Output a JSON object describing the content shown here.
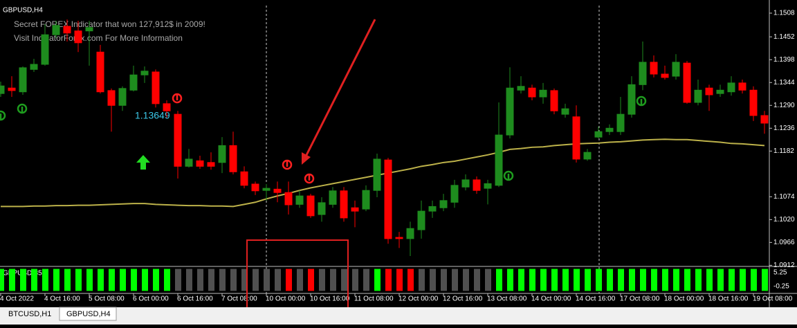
{
  "chart_data": [
    {
      "type": "candlestick",
      "title": "GBPUSD,H4",
      "annotations": [
        "Secret FOREX Indicator that won 127,912$ in 2009!",
        "Visit IndicatorForex.com For More Information",
        "1.13649"
      ],
      "categories": [
        "4 Oct 2022",
        null,
        null,
        null,
        "4 Oct 16:00",
        null,
        null,
        null,
        "5 Oct 08:00",
        null,
        null,
        null,
        "6 Oct 00:00",
        null,
        null,
        null,
        "6 Oct 16:00",
        null,
        null,
        null,
        "7 Oct 08:00",
        null,
        null,
        null,
        "10 Oct 00:00",
        null,
        null,
        null,
        "10 Oct 16:00",
        null,
        null,
        null,
        "11 Oct 08:00",
        null,
        null,
        null,
        "12 Oct 00:00",
        null,
        null,
        null,
        "12 Oct 16:00",
        null,
        null,
        null,
        "13 Oct 08:00",
        null,
        null,
        null,
        "14 Oct 00:00",
        null,
        null,
        null,
        "14 Oct 16:00",
        null,
        null,
        null,
        "17 Oct 08:00",
        null,
        null,
        null,
        "18 Oct 00:00",
        null,
        null,
        null,
        "18 Oct 16:00",
        null,
        null,
        null,
        "19 Oct 08:00",
        null
      ],
      "open": [
        1.1318,
        1.1331,
        1.1322,
        1.1375,
        1.1387,
        1.1457,
        1.1477,
        1.1466,
        1.1466,
        1.1416,
        1.1325,
        1.129,
        1.1326,
        1.1362,
        1.1369,
        1.1294,
        1.1269,
        1.1146,
        1.1159,
        1.1155,
        1.1155,
        1.1195,
        1.1133,
        1.1104,
        1.1089,
        1.1092,
        1.1084,
        1.1056,
        1.1076,
        1.1032,
        1.1056,
        1.1088,
        1.1048,
        1.1045,
        1.1089,
        1.1161,
        1.0978,
        1.0975,
        1.0996,
        1.104,
        1.1048,
        1.1061,
        1.1097,
        1.1114,
        1.1094,
        1.1101,
        1.122,
        1.1326,
        1.1331,
        1.131,
        1.1325,
        1.1269,
        1.1263,
        1.1163,
        1.1215,
        1.1228,
        1.1228,
        1.1269,
        1.1339,
        1.1392,
        1.1364,
        1.1359,
        1.139,
        1.1297,
        1.1331,
        1.1318,
        1.1322,
        1.1343,
        1.1326,
        1.1266
      ],
      "high": [
        1.1346,
        1.1359,
        1.1382,
        1.14,
        1.1482,
        1.149,
        1.1493,
        1.149,
        1.149,
        1.1433,
        1.133,
        1.1335,
        1.1384,
        1.1382,
        1.1375,
        1.1302,
        1.1277,
        1.1187,
        1.1171,
        1.1179,
        1.1215,
        1.1228,
        1.1146,
        1.111,
        1.1104,
        1.111,
        1.111,
        1.1089,
        1.1081,
        1.1073,
        1.1097,
        1.1097,
        1.1065,
        1.1101,
        1.1176,
        1.1166,
        1.0991,
        1.1015,
        1.1065,
        1.1065,
        1.1081,
        1.1114,
        1.1127,
        1.1122,
        1.1114,
        1.1297,
        1.138,
        1.1359,
        1.1339,
        1.1343,
        1.133,
        1.1294,
        1.129,
        1.1187,
        1.124,
        1.1245,
        1.131,
        1.1359,
        1.1441,
        1.1408,
        1.1384,
        1.1411,
        1.1395,
        1.1351,
        1.1339,
        1.1339,
        1.1359,
        1.1351,
        1.1335,
        1.1277
      ],
      "low": [
        1.131,
        1.131,
        1.1315,
        1.1369,
        1.1384,
        1.1449,
        1.1441,
        1.1416,
        1.1384,
        1.1318,
        1.1228,
        1.1277,
        1.1323,
        1.1343,
        1.1285,
        1.1261,
        1.1117,
        1.1143,
        1.114,
        1.1138,
        1.113,
        1.1127,
        1.1094,
        1.1078,
        1.1065,
        1.1061,
        1.1032,
        1.1048,
        1.1024,
        1.1015,
        1.1048,
        1.1015,
        1.1002,
        1.104,
        1.1073,
        1.0963,
        1.0953,
        1.0934,
        1.0975,
        1.1024,
        1.104,
        1.1048,
        1.1089,
        1.1081,
        1.1056,
        1.1097,
        1.1212,
        1.1318,
        1.1302,
        1.1294,
        1.1269,
        1.1261,
        1.1155,
        1.1159,
        1.1212,
        1.122,
        1.122,
        1.1261,
        1.1326,
        1.1356,
        1.1351,
        1.1351,
        1.1294,
        1.129,
        1.1277,
        1.131,
        1.1313,
        1.1318,
        1.1253,
        1.1223
      ],
      "close": [
        1.1336,
        1.1325,
        1.1379,
        1.1387,
        1.1457,
        1.1479,
        1.1461,
        1.1438,
        1.1474,
        1.1322,
        1.129,
        1.133,
        1.1362,
        1.1371,
        1.1294,
        1.1277,
        1.1146,
        1.1163,
        1.1146,
        1.1146,
        1.1195,
        1.1133,
        1.1101,
        1.1088,
        1.1094,
        1.1084,
        1.1055,
        1.1076,
        1.1029,
        1.106,
        1.1088,
        1.1024,
        1.104,
        1.1089,
        1.1163,
        1.0975,
        1.0975,
        1.0999,
        1.104,
        1.1051,
        1.1065,
        1.1101,
        1.1114,
        1.1089,
        1.1105,
        1.122,
        1.1331,
        1.1335,
        1.131,
        1.1326,
        1.1277,
        1.1282,
        1.1163,
        1.1179,
        1.1228,
        1.1236,
        1.1269,
        1.1339,
        1.1392,
        1.1364,
        1.1356,
        1.1392,
        1.1297,
        1.1326,
        1.1315,
        1.1326,
        1.1343,
        1.1326,
        1.1266,
        1.1248
      ],
      "up_color": "#1e8c1e",
      "down_color": "#ff0000",
      "ma": {
        "color": "#bdb24a",
        "values": [
          1.1051,
          1.1051,
          1.1051,
          1.1052,
          1.1052,
          1.1053,
          1.1053,
          1.1054,
          1.1054,
          1.1055,
          1.1056,
          1.1057,
          1.1058,
          1.1058,
          1.1056,
          1.1055,
          1.1054,
          1.1053,
          1.1053,
          1.1052,
          1.1052,
          1.1051,
          1.1056,
          1.1061,
          1.1069,
          1.1076,
          1.1082,
          1.1089,
          1.1095,
          1.11,
          1.1105,
          1.111,
          1.1115,
          1.112,
          1.1125,
          1.113,
          1.1135,
          1.114,
          1.1146,
          1.115,
          1.1155,
          1.1158,
          1.1163,
          1.1168,
          1.1173,
          1.1179,
          1.1186,
          1.1188,
          1.1191,
          1.1192,
          1.1195,
          1.1197,
          1.1199,
          1.12,
          1.1201,
          1.1203,
          1.1204,
          1.1206,
          1.1208,
          1.1209,
          1.121,
          1.1209,
          1.1209,
          1.1207,
          1.1205,
          1.1203,
          1.12,
          1.1199,
          1.1197,
          1.1195
        ]
      },
      "ylim": [
        1.0911,
        1.1526
      ],
      "yticks": [
        1.1508,
        1.1452,
        1.1398,
        1.1344,
        {
          "value": 1.129,
          "label": "1.1290"
        },
        1.1236,
        1.1182,
        1.1074,
        {
          "value": 1.102,
          "label": "1.1020"
        },
        1.0966,
        1.0912
      ]
    },
    {
      "type": "bar",
      "title": "GBPUSD(35)",
      "values": [
        5,
        5,
        5,
        5,
        5,
        5,
        5,
        5,
        5,
        5,
        5,
        5,
        5,
        5,
        5,
        5,
        5,
        5,
        5,
        5,
        5,
        5,
        5,
        5,
        5,
        5,
        5,
        5,
        5,
        5,
        5,
        5,
        5,
        5,
        5,
        5,
        5,
        5,
        5,
        5,
        5,
        5,
        5,
        5,
        5,
        5,
        5,
        5,
        5,
        5,
        5,
        5,
        5,
        5,
        5,
        5,
        5,
        5,
        5,
        5,
        5,
        5,
        5,
        5,
        5,
        5,
        5,
        5,
        5,
        5
      ],
      "colors": [
        "#00ff00",
        "#00ff00",
        "#00ff00",
        "#00ff00",
        "#00ff00",
        "#00ff00",
        "#00ff00",
        "#00ff00",
        "#00ff00",
        "#00ff00",
        "#00ff00",
        "#00ff00",
        "#00ff00",
        "#00ff00",
        "#00ff00",
        "#00ff00",
        "#505050",
        "#505050",
        "#505050",
        "#505050",
        "#505050",
        "#505050",
        "#505050",
        "#505050",
        "#505050",
        "#505050",
        "#ff0000",
        "#505050",
        "#ff0000",
        "#505050",
        "#505050",
        "#505050",
        "#505050",
        "#505050",
        "#00ff00",
        "#ff0000",
        "#ff0000",
        "#ff0000",
        "#505050",
        "#505050",
        "#505050",
        "#505050",
        "#505050",
        "#505050",
        "#505050",
        "#00ff00",
        "#00ff00",
        "#00ff00",
        "#00ff00",
        "#00ff00",
        "#00ff00",
        "#00ff00",
        "#00ff00",
        "#00ff00",
        "#00ff00",
        "#00ff00",
        "#00ff00",
        "#00ff00",
        "#00ff00",
        "#00ff00",
        "#00ff00",
        "#00ff00",
        "#00ff00",
        "#00ff00",
        "#00ff00",
        "#00ff00",
        "#00ff00",
        "#00ff00",
        "#00ff00",
        "#00ff00"
      ],
      "ylim": [
        -0.25,
        5.25
      ],
      "yticks": [
        5.25,
        -0.25
      ]
    }
  ],
  "tabs": [
    "BTCUSD,H1",
    "GBPUSD,H4"
  ]
}
